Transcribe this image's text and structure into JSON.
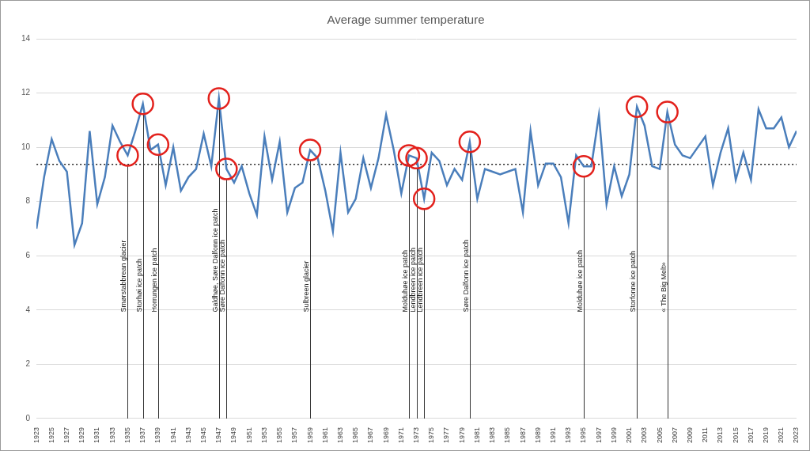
{
  "chart_data": {
    "type": "line",
    "title": "Average summer temperature",
    "x": [
      1923,
      1924,
      1925,
      1926,
      1927,
      1928,
      1929,
      1930,
      1931,
      1932,
      1933,
      1934,
      1935,
      1936,
      1937,
      1938,
      1939,
      1940,
      1941,
      1942,
      1943,
      1944,
      1945,
      1946,
      1947,
      1948,
      1949,
      1950,
      1951,
      1952,
      1953,
      1954,
      1955,
      1956,
      1957,
      1958,
      1959,
      1960,
      1961,
      1962,
      1963,
      1964,
      1965,
      1966,
      1967,
      1968,
      1969,
      1970,
      1971,
      1972,
      1973,
      1974,
      1975,
      1976,
      1977,
      1978,
      1979,
      1980,
      1981,
      1982,
      1983,
      1984,
      1985,
      1986,
      1987,
      1988,
      1989,
      1990,
      1991,
      1992,
      1993,
      1994,
      1995,
      1996,
      1997,
      1998,
      1999,
      2000,
      2001,
      2002,
      2003,
      2004,
      2005,
      2006,
      2007,
      2008,
      2009,
      2010,
      2011,
      2012,
      2013,
      2014,
      2015,
      2016,
      2017,
      2018,
      2019,
      2020,
      2021,
      2022,
      2023
    ],
    "values": [
      7.0,
      8.9,
      10.3,
      9.5,
      9.1,
      6.4,
      7.2,
      10.6,
      7.9,
      8.9,
      10.8,
      10.2,
      9.7,
      10.6,
      11.6,
      9.9,
      10.1,
      8.6,
      10.0,
      8.4,
      8.9,
      9.2,
      10.5,
      9.3,
      11.8,
      9.2,
      8.7,
      9.3,
      8.3,
      7.5,
      10.4,
      8.8,
      10.2,
      7.6,
      8.5,
      8.7,
      9.9,
      9.6,
      8.4,
      6.9,
      9.8,
      7.6,
      8.1,
      9.6,
      8.5,
      9.6,
      11.2,
      9.9,
      8.3,
      9.7,
      9.6,
      8.1,
      9.8,
      9.5,
      8.6,
      9.2,
      8.8,
      10.2,
      8.1,
      9.2,
      9.1,
      9.0,
      9.1,
      9.2,
      7.6,
      10.6,
      8.6,
      9.4,
      9.4,
      8.9,
      7.2,
      9.7,
      9.3,
      9.3,
      11.2,
      7.9,
      9.3,
      8.2,
      9.0,
      11.5,
      10.8,
      9.3,
      9.2,
      11.3,
      10.1,
      9.7,
      9.6,
      10.0,
      10.4,
      8.6,
      9.8,
      10.7,
      8.8,
      9.8,
      8.8,
      11.4,
      10.7,
      10.7,
      11.1,
      10.0,
      10.6
    ],
    "color": "#4a7ebb",
    "xlim": [
      1923,
      2023
    ],
    "xticks": [
      1923,
      1925,
      1927,
      1929,
      1931,
      1933,
      1935,
      1937,
      1939,
      1941,
      1943,
      1945,
      1947,
      1949,
      1951,
      1953,
      1955,
      1957,
      1959,
      1961,
      1963,
      1965,
      1967,
      1969,
      1971,
      1973,
      1975,
      1977,
      1979,
      1981,
      1983,
      1985,
      1987,
      1989,
      1991,
      1993,
      1995,
      1997,
      1999,
      2001,
      2003,
      2005,
      2007,
      2009,
      2011,
      2013,
      2015,
      2017,
      2019,
      2021,
      2023
    ],
    "ylim": [
      0,
      14
    ],
    "yticks": [
      0,
      2,
      4,
      6,
      8,
      10,
      12,
      14
    ],
    "grid": true,
    "reference_line": 9.37,
    "annotations": [
      {
        "x": 1935,
        "label": "Smørstabbrean glacier"
      },
      {
        "x": 1937,
        "label": "Storhøi ice patch"
      },
      {
        "x": 1939,
        "label": "Horrungen ice patch"
      },
      {
        "x": 1947,
        "label": "Galdhøe, Søre Dalfonn ice patch"
      },
      {
        "x": 1948,
        "label": "Søre Dalfonn ice patch"
      },
      {
        "x": 1959,
        "label": "Sulbreen glacier"
      },
      {
        "x": 1972,
        "label": "Molduhøe ice patch"
      },
      {
        "x": 1973,
        "label": "Lendbreen ice patch"
      },
      {
        "x": 1974,
        "label": "Lendbreen ice patch"
      },
      {
        "x": 1980,
        "label": "Søre Dalfonn ice patch"
      },
      {
        "x": 1995,
        "label": "Molduhøe ice patch"
      },
      {
        "x": 2002,
        "label": "Storfonne ice patch"
      },
      {
        "x": 2006,
        "label": "« The Big Melt»"
      }
    ]
  }
}
